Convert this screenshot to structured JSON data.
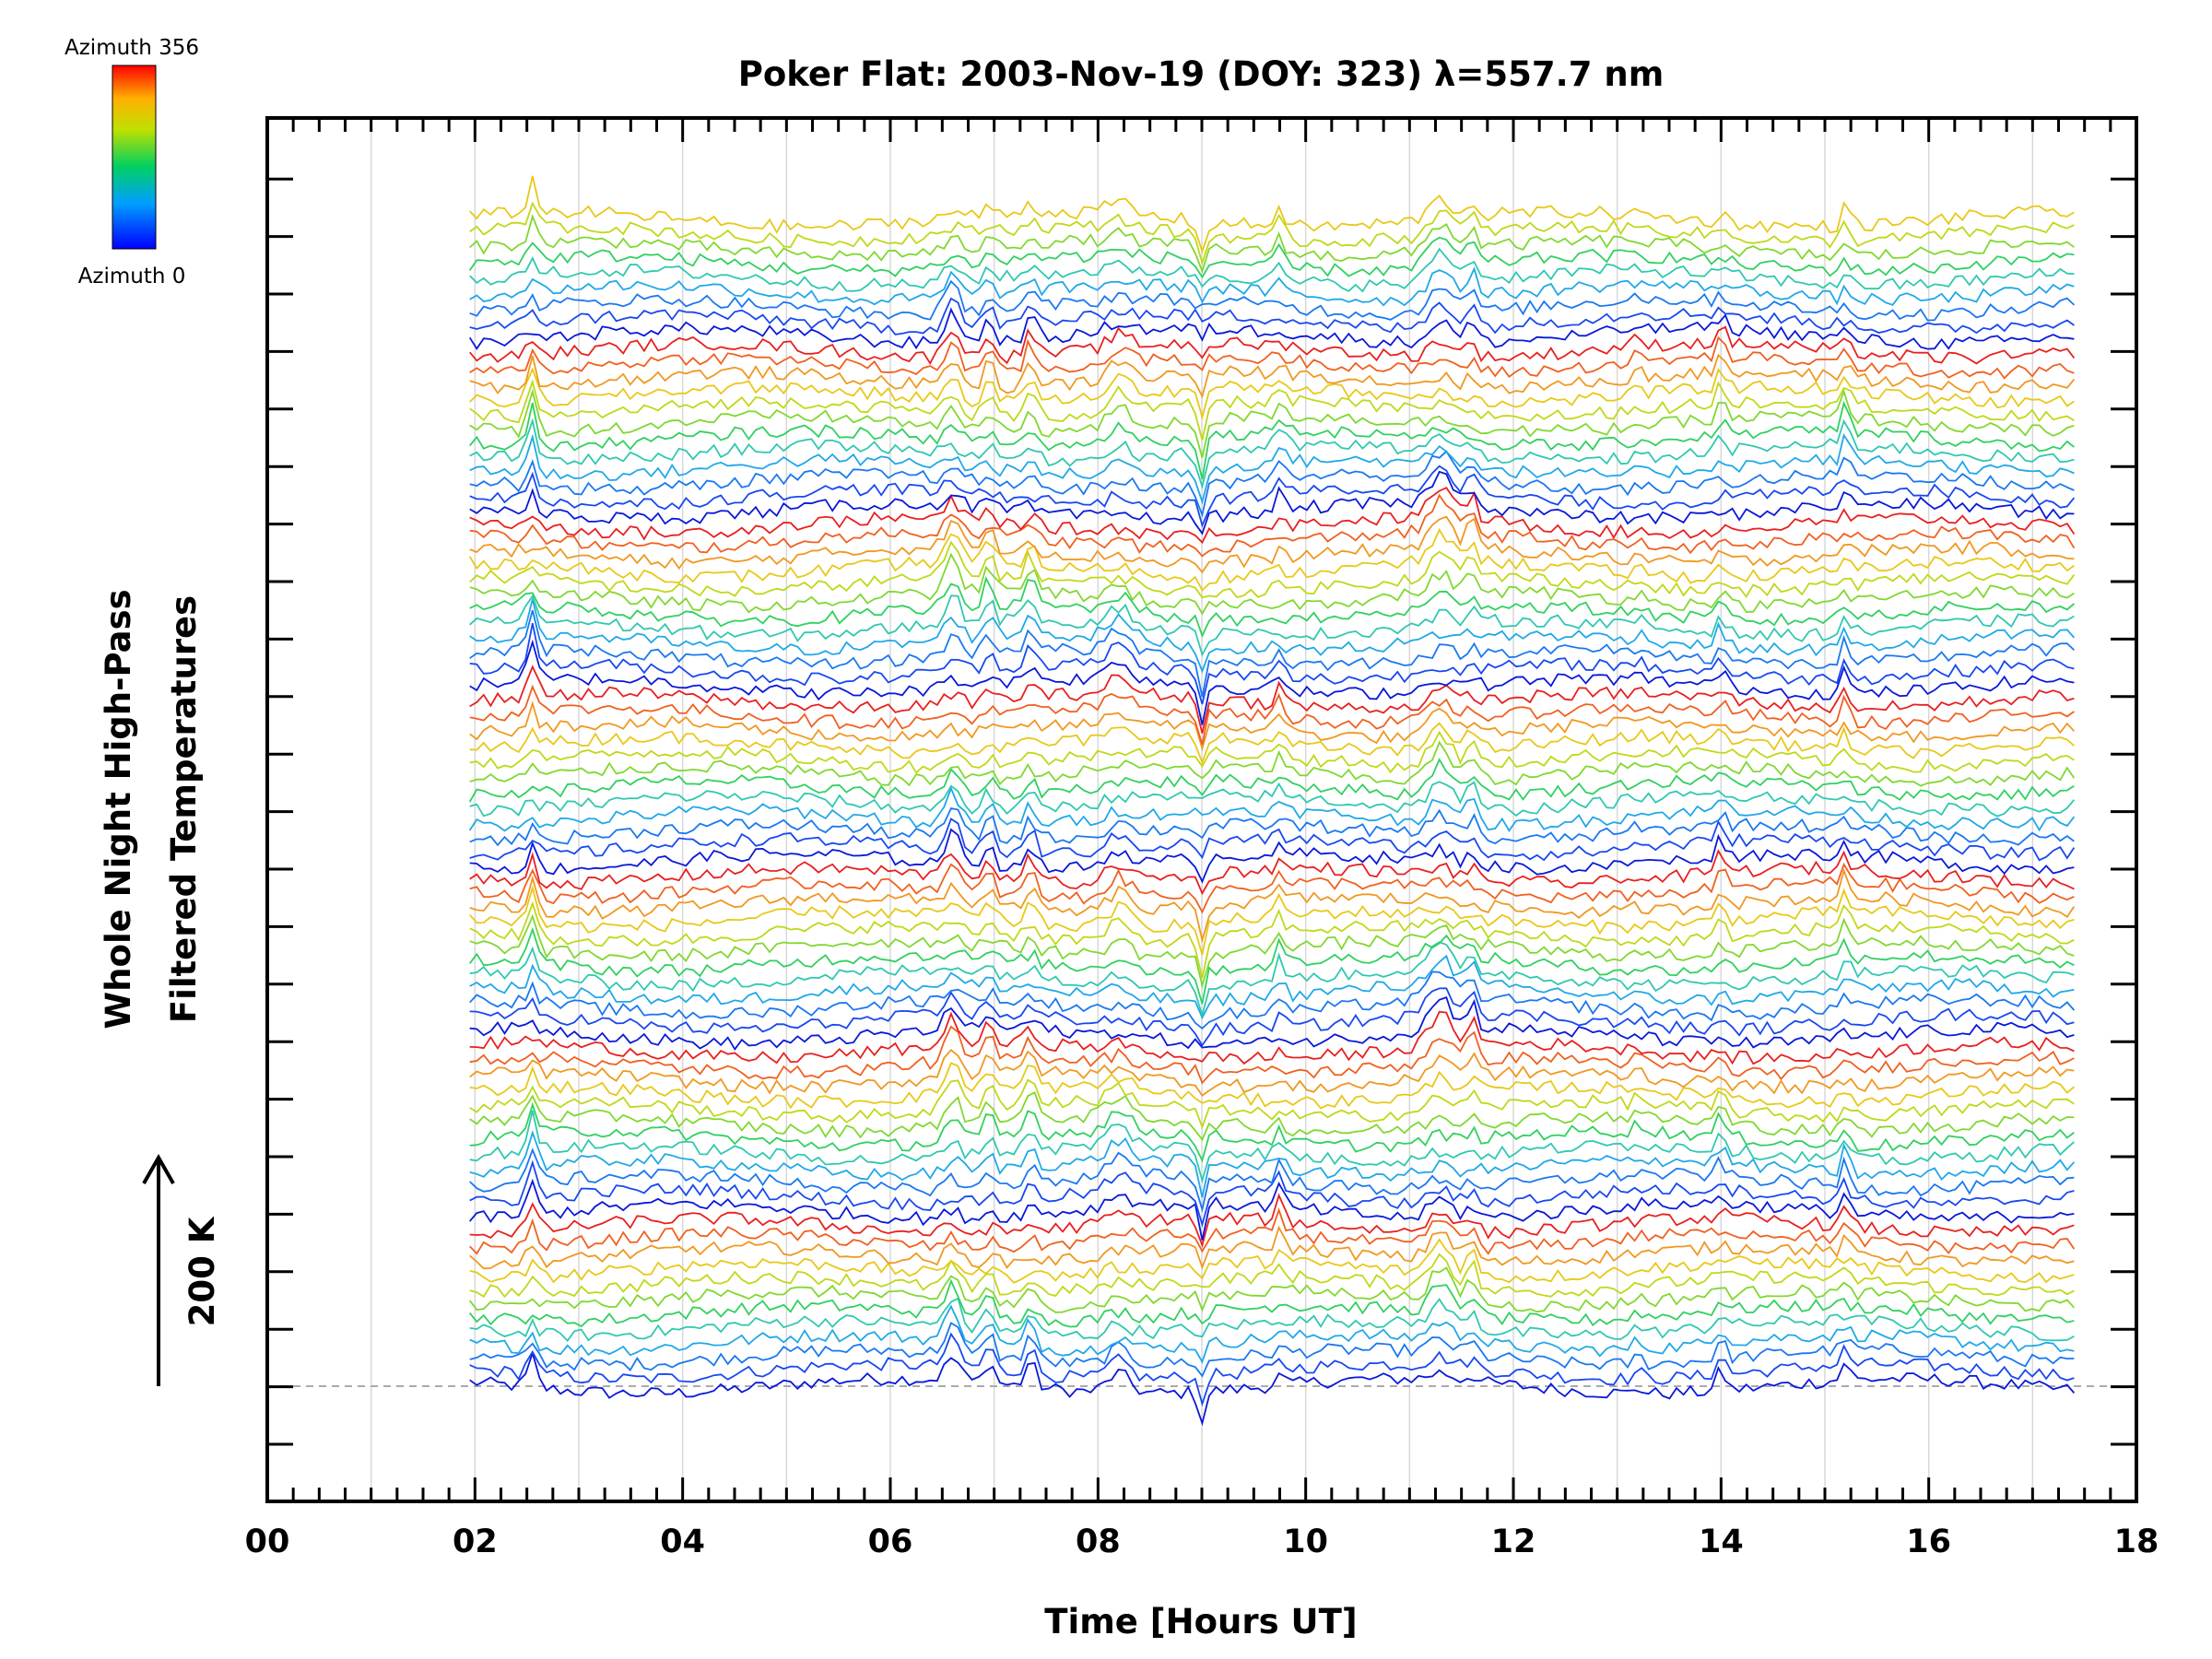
{
  "chart_data": {
    "type": "line",
    "title": "Poker Flat: 2003-Nov-19 (DOY: 323) λ=557.7 nm",
    "xlabel": "Time [Hours UT]",
    "ylabel_line1": "Whole Night High-Pass",
    "ylabel_line2": "Filtered Temperatures",
    "xlim": [
      0,
      18
    ],
    "x_ticks": [
      0,
      2,
      4,
      6,
      8,
      10,
      12,
      14,
      16,
      18
    ],
    "x_tick_labels": [
      "00",
      "02",
      "04",
      "06",
      "08",
      "10",
      "12",
      "14",
      "16",
      "18"
    ],
    "x_data_range": [
      1.95,
      17.4
    ],
    "scale_bar": {
      "label": "200 K"
    },
    "colorbar": {
      "top_label": "Azimuth 356",
      "bottom_label": "Azimuth 0",
      "min": 0,
      "max": 356
    },
    "series_count": 81,
    "series_description_colors": "stacked azimuth traces colored blue (0) through red (356), repeating in 4 groups"
  }
}
